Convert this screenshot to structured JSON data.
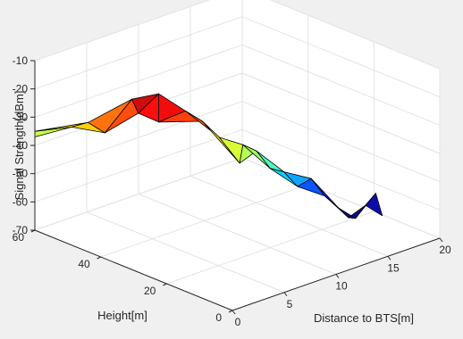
{
  "chart_data": {
    "type": "surface3d",
    "title": "",
    "xlabel": "Distance to BTS[m]",
    "ylabel": "Height[m]",
    "zlabel": "Signal Strength[dBm]",
    "xlim": [
      0,
      20
    ],
    "ylim": [
      0,
      60
    ],
    "zlim": [
      -70,
      -10
    ],
    "xticks": [
      "0",
      "5",
      "10",
      "15",
      "20"
    ],
    "yticks": [
      "0",
      "20",
      "40",
      "60"
    ],
    "zticks": [
      "-10",
      "-20",
      "-30",
      "-40",
      "-50",
      "-60",
      "-70"
    ],
    "grid": true,
    "colormap": "jet",
    "colors": {
      "background": "#f0f0f0",
      "pane": "#ffffff",
      "grid": "#e3e3e3",
      "axis": "#262626",
      "edge": "#000000"
    },
    "series": [
      {
        "values": [
          [
            0,
            60,
            -37
          ],
          [
            0,
            60,
            -35
          ],
          [
            1,
            52,
            -31
          ],
          [
            1,
            47,
            -27
          ],
          [
            2,
            45,
            -31
          ],
          [
            3,
            40,
            -18
          ],
          [
            3,
            38,
            -22
          ],
          [
            4,
            35,
            -15
          ],
          [
            4,
            35,
            -25
          ],
          [
            5,
            30,
            -20
          ],
          [
            6,
            28,
            -24
          ],
          [
            7,
            26,
            -30
          ],
          [
            8,
            23,
            -39
          ],
          [
            8,
            22,
            -32
          ],
          [
            9,
            21,
            -35
          ],
          [
            10,
            20,
            -42
          ],
          [
            11,
            19,
            -44
          ],
          [
            12,
            18,
            -50
          ],
          [
            13,
            17,
            -48
          ],
          [
            14,
            16,
            -55
          ],
          [
            15,
            15,
            -60
          ],
          [
            15,
            12,
            -62
          ],
          [
            16,
            13,
            -64
          ],
          [
            16,
            10,
            -58
          ],
          [
            17,
            10,
            -55
          ],
          [
            17,
            8,
            -62
          ]
        ]
      }
    ]
  }
}
